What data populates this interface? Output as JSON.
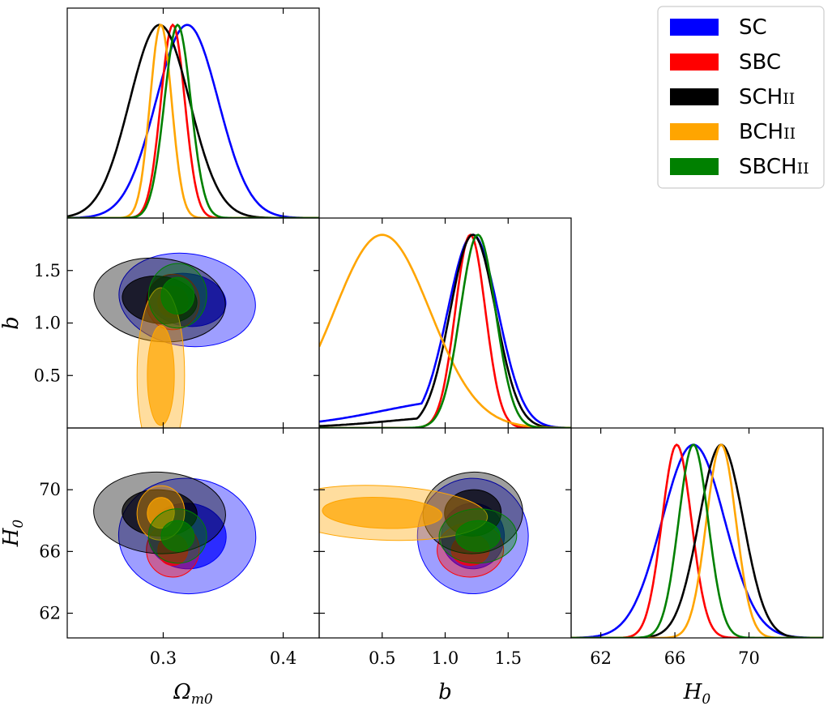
{
  "chart_data": {
    "type": "triangle",
    "parameters": [
      {
        "key": "om",
        "label": "Ω",
        "subscript": "m0",
        "range": [
          0.22,
          0.43
        ],
        "ticks": [
          "0.3",
          "0.4"
        ]
      },
      {
        "key": "b",
        "label": "b",
        "subscript": "",
        "range": [
          0.0,
          2.0
        ],
        "ticks": [
          "0.5",
          "1.0",
          "1.5"
        ]
      },
      {
        "key": "H0",
        "label": "H",
        "subscript": "0",
        "range": [
          60.4,
          74.0
        ],
        "ticks": [
          "62",
          "66",
          "70"
        ]
      }
    ],
    "legend_position": "top-right",
    "series": [
      {
        "name": "SC",
        "short": "SC",
        "suffix": "",
        "color": "#0000ff",
        "mean": {
          "om": 0.32,
          "b": 1.22,
          "H0": 67.0
        },
        "sigma": {
          "om": 0.026,
          "b": 0.2,
          "H0": 1.7
        },
        "b_lowtail": 0.6,
        "om_b_slope": -5.0,
        "H0_b_slope": 1.2,
        "om_H0_slope": -12.0
      },
      {
        "name": "SBC",
        "short": "SBC",
        "suffix": "",
        "color": "#ff0000",
        "mean": {
          "om": 0.308,
          "b": 1.2,
          "H0": 66.1
        },
        "sigma": {
          "om": 0.01,
          "b": 0.12,
          "H0": 0.8
        },
        "b_lowtail": 0.0,
        "om_b_slope": -3.0,
        "H0_b_slope": 0.8,
        "om_H0_slope": -15.0
      },
      {
        "name": "SCHII",
        "short": "SCH",
        "suffix": "II",
        "color": "#000000",
        "mean": {
          "om": 0.297,
          "b": 1.22,
          "H0": 68.5
        },
        "sigma": {
          "om": 0.025,
          "b": 0.18,
          "H0": 1.2
        },
        "b_lowtail": 0.25,
        "om_b_slope": -4.0,
        "H0_b_slope": 1.5,
        "om_H0_slope": -10.0
      },
      {
        "name": "BCHII",
        "short": "BCH",
        "suffix": "II",
        "color": "#ffa500",
        "mean": {
          "om": 0.298,
          "b": 0.5,
          "H0": 68.5
        },
        "sigma": {
          "om": 0.009,
          "b": 0.38,
          "H0": 0.8
        },
        "b_lowtail": 0.0,
        "om_b_slope": 0.0,
        "H0_b_slope": -1.0,
        "om_H0_slope": -20.0
      },
      {
        "name": "SBCHII",
        "short": "SBCH",
        "suffix": "II",
        "color": "#008000",
        "mean": {
          "om": 0.312,
          "b": 1.26,
          "H0": 67.0
        },
        "sigma": {
          "om": 0.011,
          "b": 0.14,
          "H0": 0.8
        },
        "b_lowtail": 0.0,
        "om_b_slope": -2.0,
        "H0_b_slope": 0.6,
        "om_H0_slope": -15.0
      }
    ]
  }
}
